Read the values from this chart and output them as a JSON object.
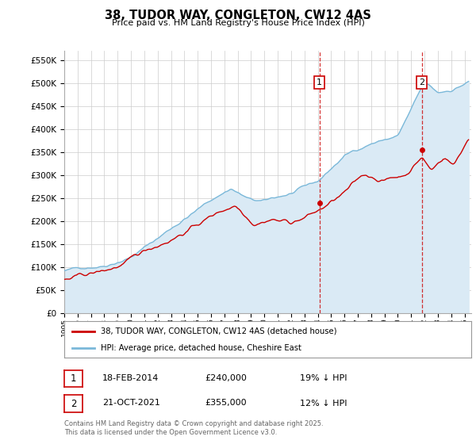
{
  "title": "38, TUDOR WAY, CONGLETON, CW12 4AS",
  "subtitle": "Price paid vs. HM Land Registry's House Price Index (HPI)",
  "legend_line1": "38, TUDOR WAY, CONGLETON, CW12 4AS (detached house)",
  "legend_line2": "HPI: Average price, detached house, Cheshire East",
  "footer_line1": "Contains HM Land Registry data © Crown copyright and database right 2025.",
  "footer_line2": "This data is licensed under the Open Government Licence v3.0.",
  "hpi_color": "#7ab8d9",
  "price_color": "#cc0000",
  "background_color": "#ffffff",
  "grid_color": "#cccccc",
  "hpi_fill_color": "#daeaf5",
  "sale1_year": 2014.12,
  "sale1_price": 240000,
  "sale2_year": 2021.8,
  "sale2_price": 355000,
  "ylim_max": 570000,
  "xlim_start": 1995.0,
  "xlim_end": 2025.5
}
